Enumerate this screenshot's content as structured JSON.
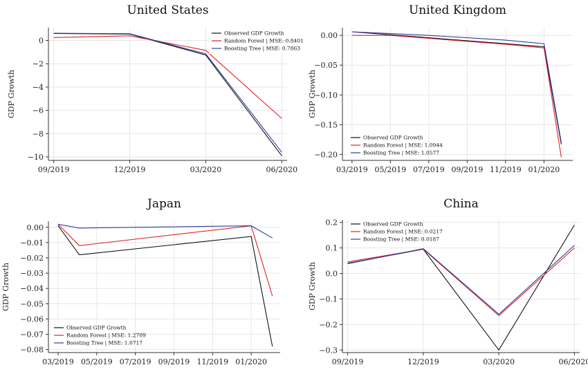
{
  "colors": {
    "observed": "#111111",
    "rf": "#e0202a",
    "bt": "#2a3d9a"
  },
  "y_axis_label": "GDP Growth",
  "chart_data": [
    {
      "type": "line",
      "title": "United States",
      "x": [
        0,
        1,
        2,
        3
      ],
      "xticks": [
        0,
        1,
        2,
        3
      ],
      "xtick_labels": [
        "09/2019",
        "12/2019",
        "03/2020",
        "06/2020"
      ],
      "xlim": [
        -0.07,
        3.07
      ],
      "ylim": [
        -10.3,
        1.1
      ],
      "yticks": [
        0,
        -2,
        -4,
        -6,
        -8,
        -10
      ],
      "ytick_labels": [
        "0",
        "−2",
        "−4",
        "−6",
        "−8",
        "−10"
      ],
      "ylabel": "GDP Growth",
      "legend_position": "top-right",
      "series": [
        {
          "name": "Observed GDP Growth",
          "key": "observed",
          "values": [
            0.6,
            0.55,
            -1.25,
            -9.9
          ]
        },
        {
          "name": "Random Forest | MSE: 0.8401",
          "key": "rf",
          "values": [
            0.25,
            0.4,
            -0.85,
            -6.7
          ]
        },
        {
          "name": "Boosting Tree | MSE: 0.7863",
          "key": "bt",
          "values": [
            0.62,
            0.58,
            -1.15,
            -9.6
          ]
        }
      ]
    },
    {
      "type": "line",
      "title": "United Kingdom",
      "x": [
        0,
        1,
        2,
        3,
        4,
        5,
        5.45
      ],
      "xticks": [
        0,
        1,
        2,
        3,
        4,
        5
      ],
      "xtick_labels": [
        "03/2019",
        "05/2019",
        "07/2019",
        "09/2019",
        "11/2019",
        "01/2020"
      ],
      "xlim": [
        -0.25,
        5.75
      ],
      "ylim": [
        -0.21,
        0.013
      ],
      "yticks": [
        0,
        -0.05,
        -0.1,
        -0.15,
        -0.2
      ],
      "ytick_labels": [
        "0.00",
        "−0.05",
        "−0.10",
        "−0.15",
        "−0.20"
      ],
      "ylabel": "GDP Growth",
      "legend_position": "bottom-left",
      "series": [
        {
          "name": "Observed GDP Growth",
          "key": "observed",
          "values": [
            0.006,
            0.001,
            -0.004,
            -0.009,
            -0.014,
            -0.019,
            -0.183
          ]
        },
        {
          "name": "Random Forest | MSE: 1.0944",
          "key": "rf",
          "values": [
            0.0,
            0.0,
            -0.005,
            -0.01,
            -0.015,
            -0.021,
            -0.205
          ]
        },
        {
          "name": "Boosting Tree | MSE: 1.0577",
          "key": "bt",
          "values": [
            0.006,
            0.003,
            -0.0,
            -0.004,
            -0.008,
            -0.014,
            -0.18
          ]
        }
      ]
    },
    {
      "type": "line",
      "title": "Japan",
      "x": [
        0,
        0.55,
        5,
        5.55
      ],
      "xticks": [
        0,
        1,
        2,
        3,
        4,
        5
      ],
      "xtick_labels": [
        "03/2019",
        "05/2019",
        "07/2019",
        "09/2019",
        "11/2019",
        "01/2020"
      ],
      "xlim": [
        -0.25,
        5.75
      ],
      "ylim": [
        -0.082,
        0.004
      ],
      "yticks": [
        0,
        -0.01,
        -0.02,
        -0.03,
        -0.04,
        -0.05,
        -0.06,
        -0.07,
        -0.08
      ],
      "ytick_labels": [
        "0.00",
        "−0.01",
        "−0.02",
        "−0.03",
        "−0.04",
        "−0.05",
        "−0.06",
        "−0.07",
        "−0.08"
      ],
      "ylabel": "GDP Growth",
      "legend_position": "bottom-left",
      "series": [
        {
          "name": "Observed GDP Growth",
          "key": "observed",
          "values": [
            0.001,
            -0.018,
            -0.006,
            -0.078
          ]
        },
        {
          "name": "Random Forest | MSE: 1.2709",
          "key": "rf",
          "values": [
            0.002,
            -0.012,
            0.001,
            -0.045
          ]
        },
        {
          "name": "Boosting Tree | MSE: 1.0717",
          "key": "bt",
          "values": [
            0.002,
            -0.0005,
            0.001,
            -0.007
          ]
        }
      ]
    },
    {
      "type": "line",
      "title": "China",
      "x": [
        0,
        1,
        2,
        3
      ],
      "xticks": [
        0,
        1,
        2,
        3
      ],
      "xtick_labels": [
        "09/2019",
        "12/2019",
        "03/2020",
        "06/2020"
      ],
      "xlim": [
        -0.07,
        3.07
      ],
      "ylim": [
        -0.31,
        0.21
      ],
      "yticks": [
        0.2,
        0.1,
        0,
        -0.1,
        -0.2,
        -0.3
      ],
      "ytick_labels": [
        "0.2",
        "0.1",
        "0.0",
        "−0.1",
        "−0.2",
        "−0.3"
      ],
      "ylabel": "GDP Growth",
      "legend_position": "top-left",
      "series": [
        {
          "name": "Observed GDP Growth",
          "key": "observed",
          "values": [
            0.04,
            0.095,
            -0.3,
            0.19
          ]
        },
        {
          "name": "Random Forest | MSE: 0.0217",
          "key": "rf",
          "values": [
            0.045,
            0.095,
            -0.165,
            0.1
          ]
        },
        {
          "name": "Boosting Tree | MSE: 0.0187",
          "key": "bt",
          "values": [
            0.038,
            0.097,
            -0.16,
            0.11
          ]
        }
      ]
    }
  ]
}
